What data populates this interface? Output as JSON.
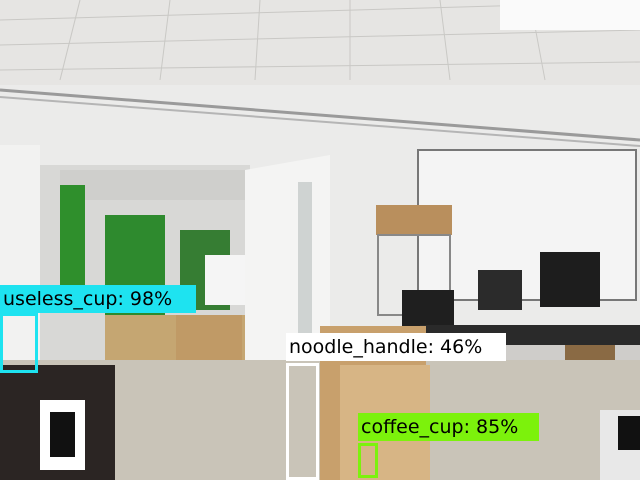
{
  "image": {
    "description_kind": "office/lab room with object-detection overlays"
  },
  "detections": [
    {
      "id": "useless_cup",
      "label": "useless_cup: 98%",
      "color": "#1ee3f0"
    },
    {
      "id": "noodle_handle",
      "label": "noodle_handle: 46%",
      "color": "#ffffff"
    },
    {
      "id": "coffee_cup",
      "label": "coffee_cup: 85%",
      "color": "#7cf20c"
    }
  ]
}
